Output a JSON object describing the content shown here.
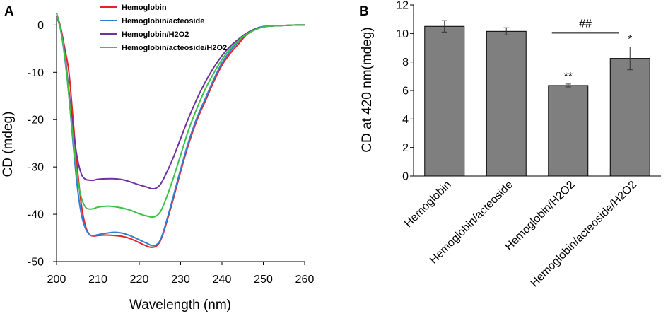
{
  "chart_data": [
    {
      "panel_label": "A",
      "type": "line",
      "title": "",
      "xlabel": "Wavelength (nm)",
      "ylabel": "CD (mdeg)",
      "xlim": [
        200,
        260
      ],
      "ylim": [
        -50,
        2
      ],
      "xticks": [
        200,
        210,
        220,
        230,
        240,
        250,
        260
      ],
      "yticks": [
        0,
        -10,
        -20,
        -30,
        -40,
        -50
      ],
      "legend_position": "top-left",
      "series": [
        {
          "name": "Hemoglobin",
          "color": "#e8221e",
          "x": [
            200,
            201,
            202,
            203,
            204,
            205,
            206,
            207,
            208,
            209,
            210,
            212,
            214,
            216,
            218,
            220,
            222,
            223,
            224,
            225,
            226,
            228,
            230,
            232,
            234,
            236,
            238,
            240,
            242,
            244,
            246,
            248,
            250,
            252,
            255,
            258,
            260
          ],
          "y": [
            2.5,
            -0.5,
            -5,
            -10,
            -20,
            -30,
            -38,
            -42.5,
            -44.3,
            -44.6,
            -44.5,
            -44.4,
            -44.5,
            -44.7,
            -45.2,
            -46,
            -46.8,
            -47,
            -46.8,
            -45.8,
            -43.5,
            -37.5,
            -31,
            -25,
            -20,
            -16,
            -12,
            -8.5,
            -6,
            -4,
            -2,
            -1,
            -0.4,
            -0.2,
            -0.1,
            0,
            0
          ]
        },
        {
          "name": "Hemoglobin/acteoside",
          "color": "#2f7fd6",
          "x": [
            200,
            201,
            202,
            203,
            204,
            205,
            206,
            207,
            208,
            209,
            210,
            212,
            214,
            216,
            218,
            220,
            222,
            223,
            224,
            225,
            226,
            228,
            230,
            232,
            234,
            236,
            238,
            240,
            242,
            244,
            246,
            248,
            250,
            252,
            255,
            258,
            260
          ],
          "y": [
            2.5,
            -1,
            -7,
            -15,
            -25,
            -34,
            -40,
            -43,
            -44.3,
            -44.5,
            -44.3,
            -44,
            -43.8,
            -44,
            -44.6,
            -45.4,
            -46.2,
            -46.6,
            -46.5,
            -45.6,
            -43.2,
            -37,
            -30.5,
            -24.5,
            -19.5,
            -15.5,
            -11.5,
            -8,
            -5.5,
            -3.5,
            -1.8,
            -0.8,
            -0.3,
            -0.2,
            -0.1,
            0,
            0
          ]
        },
        {
          "name": "Hemoglobin/H2O2",
          "color": "#7030a0",
          "x": [
            200,
            201,
            202,
            203,
            204,
            205,
            206,
            207,
            208,
            209,
            210,
            212,
            214,
            216,
            218,
            220,
            222,
            223,
            224,
            225,
            226,
            228,
            230,
            232,
            234,
            236,
            238,
            240,
            242,
            244,
            246,
            248,
            250,
            252,
            255,
            258,
            260
          ],
          "y": [
            2,
            -1,
            -6,
            -14,
            -22,
            -28,
            -31.5,
            -32.6,
            -32.8,
            -32.8,
            -32.6,
            -32.5,
            -32.5,
            -32.7,
            -33.2,
            -33.8,
            -34.3,
            -34.6,
            -34.5,
            -33.8,
            -32.3,
            -28.5,
            -24,
            -19.5,
            -15.5,
            -12,
            -9,
            -6.5,
            -4.5,
            -3,
            -1.7,
            -0.9,
            -0.4,
            -0.2,
            -0.1,
            0,
            0
          ]
        },
        {
          "name": "Hemoglobin/acteoside/H2O2",
          "color": "#3cc24a",
          "x": [
            200,
            201,
            202,
            203,
            204,
            205,
            206,
            207,
            208,
            209,
            210,
            212,
            214,
            216,
            218,
            220,
            222,
            223,
            224,
            225,
            226,
            228,
            230,
            232,
            234,
            236,
            238,
            240,
            242,
            244,
            246,
            248,
            250,
            252,
            255,
            258,
            260
          ],
          "y": [
            2.5,
            -1,
            -6.5,
            -15,
            -24,
            -32,
            -36.5,
            -38.5,
            -38.9,
            -38.8,
            -38.5,
            -38.3,
            -38.4,
            -38.7,
            -39.2,
            -39.9,
            -40.4,
            -40.6,
            -40.4,
            -39.6,
            -37.8,
            -33,
            -27.5,
            -22,
            -17.5,
            -13.5,
            -10.2,
            -7.3,
            -5,
            -3.3,
            -1.9,
            -1,
            -0.4,
            -0.2,
            -0.1,
            0,
            0
          ]
        }
      ]
    },
    {
      "panel_label": "B",
      "type": "bar",
      "title": "",
      "xlabel": "",
      "ylabel": "CD at 420 nm(mdeg)",
      "ylim": [
        0,
        12
      ],
      "yticks": [
        0,
        2,
        4,
        6,
        8,
        10,
        12
      ],
      "bar_color": "#7f7f7f",
      "categories": [
        "Hemoglobin",
        "Hemoglobin/acteoside",
        "Hemoglobin/H2O2",
        "Hemoglobin/acteoside/H2O2"
      ],
      "values": [
        10.5,
        10.15,
        6.35,
        8.25
      ],
      "errors": [
        0.4,
        0.25,
        0.1,
        0.8
      ],
      "significance": [
        "",
        "",
        "**",
        "*"
      ],
      "comparison": {
        "from": 2,
        "to": 3,
        "label": "##"
      }
    }
  ]
}
